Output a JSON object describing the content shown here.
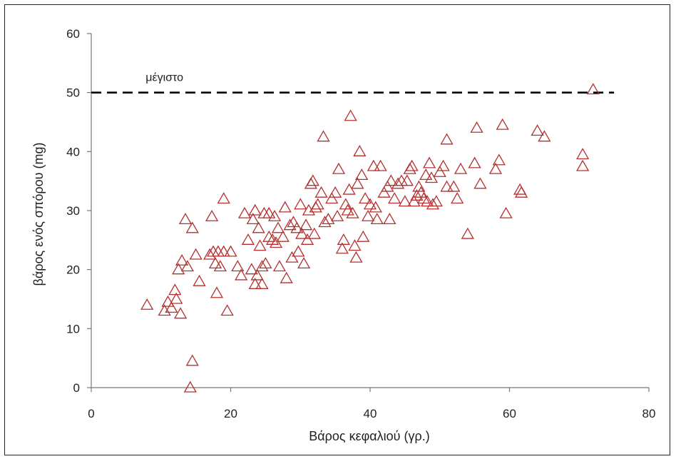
{
  "chart_data": {
    "type": "scatter",
    "title": "",
    "xlabel": "Βάρος κεφαλιού (γρ.)",
    "ylabel": "βάρος ενός σπόρου (mg)",
    "xlim": [
      0,
      80
    ],
    "ylim": [
      0,
      60
    ],
    "xticks": [
      0,
      20,
      40,
      60,
      80
    ],
    "yticks": [
      0,
      10,
      20,
      30,
      40,
      50,
      60
    ],
    "grid": false,
    "marker": "triangle-open",
    "marker_color": "#b4302e",
    "reference_line": {
      "y": 50,
      "style": "dashed",
      "color": "#000000",
      "label": "μέγιστο",
      "x_range": [
        0,
        75
      ]
    },
    "series": [
      {
        "points": [
          [
            8,
            14
          ],
          [
            10.5,
            13
          ],
          [
            11,
            14.5
          ],
          [
            11.5,
            13.5
          ],
          [
            12,
            16.5
          ],
          [
            12.2,
            15
          ],
          [
            12.5,
            20
          ],
          [
            12.8,
            12.5
          ],
          [
            13,
            21.5
          ],
          [
            13.5,
            28.5
          ],
          [
            13.8,
            20.5
          ],
          [
            14.2,
            0
          ],
          [
            14.5,
            4.5
          ],
          [
            14.5,
            27
          ],
          [
            15,
            22.5
          ],
          [
            15.5,
            18
          ],
          [
            17,
            22.5
          ],
          [
            17.3,
            29
          ],
          [
            17.5,
            23
          ],
          [
            17.8,
            21
          ],
          [
            18,
            16
          ],
          [
            18.2,
            23
          ],
          [
            18.5,
            20.5
          ],
          [
            19,
            23
          ],
          [
            19,
            32
          ],
          [
            19.5,
            13
          ],
          [
            20,
            23
          ],
          [
            21,
            20.5
          ],
          [
            21.5,
            19
          ],
          [
            22,
            29.5
          ],
          [
            22.5,
            25
          ],
          [
            23,
            20
          ],
          [
            23.2,
            28.5
          ],
          [
            23.5,
            17.5
          ],
          [
            23.5,
            30
          ],
          [
            23.8,
            19
          ],
          [
            24,
            27
          ],
          [
            24.2,
            24
          ],
          [
            24.5,
            17.5
          ],
          [
            24.5,
            20.5
          ],
          [
            24.8,
            29.5
          ],
          [
            25,
            21
          ],
          [
            25.5,
            29.5
          ],
          [
            25.5,
            25.5
          ],
          [
            26,
            25
          ],
          [
            26.3,
            29
          ],
          [
            26.5,
            24.5
          ],
          [
            26.8,
            27
          ],
          [
            27,
            20.5
          ],
          [
            27.5,
            25.5
          ],
          [
            27.8,
            30.5
          ],
          [
            28,
            18.5
          ],
          [
            28.5,
            27.5
          ],
          [
            28.8,
            22
          ],
          [
            29,
            28
          ],
          [
            29.5,
            27
          ],
          [
            29.7,
            23
          ],
          [
            30,
            31
          ],
          [
            30.2,
            26
          ],
          [
            30.5,
            21
          ],
          [
            30.8,
            27.5
          ],
          [
            31,
            25
          ],
          [
            31.2,
            30
          ],
          [
            31.5,
            34.5
          ],
          [
            31.8,
            35
          ],
          [
            32,
            26
          ],
          [
            32.2,
            30.5
          ],
          [
            32.5,
            31
          ],
          [
            33,
            33
          ],
          [
            33.3,
            42.5
          ],
          [
            33.5,
            28
          ],
          [
            34,
            28.5
          ],
          [
            34.5,
            32
          ],
          [
            35,
            33
          ],
          [
            35.3,
            29
          ],
          [
            35.5,
            37
          ],
          [
            36,
            23.5
          ],
          [
            36.2,
            25
          ],
          [
            36.5,
            31
          ],
          [
            36.8,
            30
          ],
          [
            37,
            33.5
          ],
          [
            37.2,
            46
          ],
          [
            37.5,
            29.5
          ],
          [
            37.8,
            24
          ],
          [
            38,
            22
          ],
          [
            38.2,
            34.5
          ],
          [
            38.5,
            40
          ],
          [
            38.8,
            36
          ],
          [
            39,
            25.5
          ],
          [
            39.3,
            32
          ],
          [
            39.7,
            29
          ],
          [
            40,
            31
          ],
          [
            40.5,
            37.5
          ],
          [
            40.8,
            30.5
          ],
          [
            41,
            28.5
          ],
          [
            41.5,
            37.5
          ],
          [
            42,
            33
          ],
          [
            42.5,
            34
          ],
          [
            42.8,
            28.5
          ],
          [
            43,
            35
          ],
          [
            43.5,
            32
          ],
          [
            44,
            34.5
          ],
          [
            44.5,
            35
          ],
          [
            45,
            31.5
          ],
          [
            45.3,
            35
          ],
          [
            45.7,
            37
          ],
          [
            46,
            37.5
          ],
          [
            46.3,
            31.5
          ],
          [
            46.7,
            32.5
          ],
          [
            47,
            34
          ],
          [
            47.3,
            33
          ],
          [
            47.7,
            32
          ],
          [
            48,
            36
          ],
          [
            48.2,
            31.5
          ],
          [
            48.5,
            38
          ],
          [
            48.8,
            35.5
          ],
          [
            49,
            31
          ],
          [
            49.5,
            31.5
          ],
          [
            50,
            36.5
          ],
          [
            50.5,
            37.5
          ],
          [
            51,
            34
          ],
          [
            51,
            42
          ],
          [
            52,
            34
          ],
          [
            52.5,
            32
          ],
          [
            53,
            37
          ],
          [
            54,
            26
          ],
          [
            55,
            38
          ],
          [
            55.3,
            44
          ],
          [
            55.8,
            34.5
          ],
          [
            58,
            37
          ],
          [
            58.5,
            38.5
          ],
          [
            59,
            44.5
          ],
          [
            59.5,
            29.5
          ],
          [
            61.5,
            33.5
          ],
          [
            61.7,
            33
          ],
          [
            64,
            43.5
          ],
          [
            65,
            42.5
          ],
          [
            70.5,
            39.5
          ],
          [
            70.5,
            37.5
          ],
          [
            72,
            50.5
          ]
        ]
      }
    ]
  }
}
